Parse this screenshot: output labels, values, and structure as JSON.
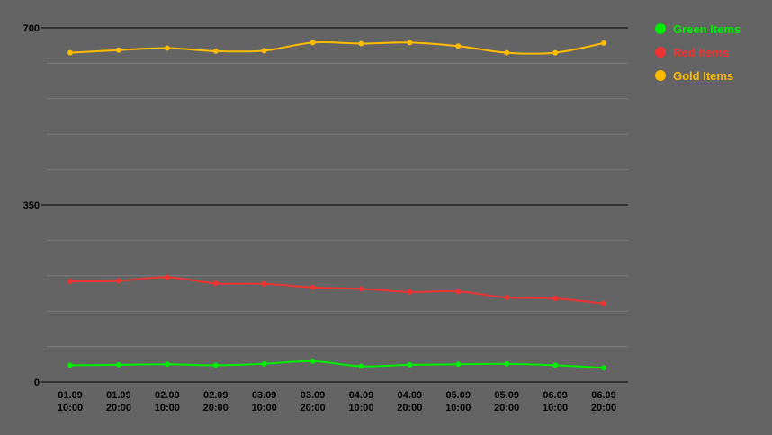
{
  "chart_data": {
    "type": "line",
    "categories": [
      [
        "01.09",
        "10:00"
      ],
      [
        "01.09",
        "20:00"
      ],
      [
        "02.09",
        "10:00"
      ],
      [
        "02.09",
        "20:00"
      ],
      [
        "03.09",
        "10:00"
      ],
      [
        "03.09",
        "20:00"
      ],
      [
        "04.09",
        "10:00"
      ],
      [
        "04.09",
        "20:00"
      ],
      [
        "05.09",
        "10:00"
      ],
      [
        "05.09",
        "20:00"
      ],
      [
        "06.09",
        "10:00"
      ],
      [
        "06.09",
        "20:00"
      ]
    ],
    "yticks": [
      0,
      350,
      700
    ],
    "ylim": [
      0,
      700
    ],
    "minor_grid_step": 70,
    "grid": true,
    "legend_position": "top-right",
    "series": [
      {
        "name": "Green Items",
        "color": "#00ee00",
        "values": [
          33,
          34,
          35,
          33,
          36,
          41,
          31,
          34,
          35,
          36,
          33,
          28
        ]
      },
      {
        "name": "Red Items",
        "color": "#ee3333",
        "values": [
          199,
          200,
          207,
          195,
          194,
          187,
          184,
          178,
          179,
          167,
          165,
          155
        ]
      },
      {
        "name": "Gold Items",
        "color": "#ffbb00",
        "values": [
          651,
          656,
          660,
          654,
          655,
          671,
          669,
          671,
          664,
          651,
          651,
          670
        ]
      }
    ]
  }
}
